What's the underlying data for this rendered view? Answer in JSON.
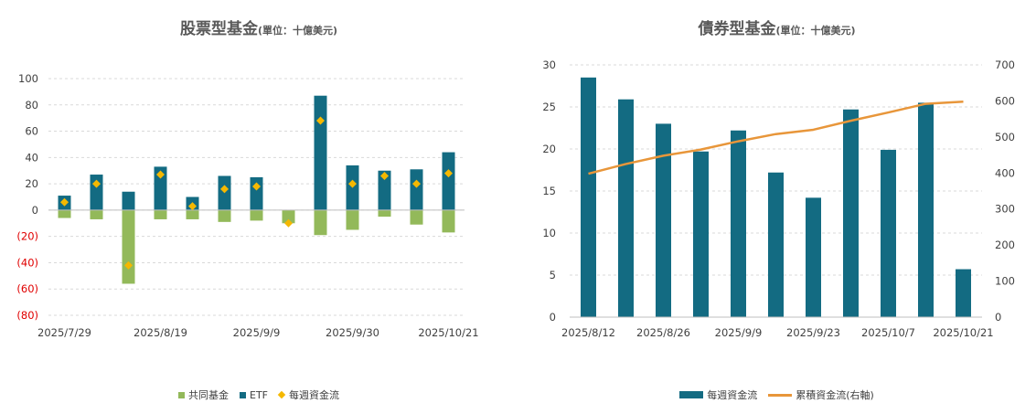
{
  "chart_data": [
    {
      "type": "bar",
      "title": "股票型基金",
      "unit": "(單位：十億美元)",
      "categories": [
        "2025/7/29",
        "2025/8/5",
        "2025/8/12",
        "2025/8/19",
        "2025/8/26",
        "2025/9/2",
        "2025/9/9",
        "2025/9/16",
        "2025/9/23",
        "2025/9/30",
        "2025/10/7",
        "2025/10/14",
        "2025/10/21"
      ],
      "x_tick_labels": [
        "2025/7/29",
        "2025/8/19",
        "2025/9/9",
        "2025/9/30",
        "2025/10/21"
      ],
      "y_tick_labels": [
        "100",
        "80",
        "60",
        "40",
        "20",
        "0",
        "(20)",
        "(40)",
        "(60)",
        "(80)"
      ],
      "ylim": [
        -80,
        100
      ],
      "series": [
        {
          "name": "共同基金",
          "kind": "bar",
          "color": "#93b95a",
          "values": [
            -6,
            -7,
            -56,
            -7,
            -7,
            -9,
            -8,
            -10,
            -19,
            -15,
            -5,
            -11,
            -17
          ]
        },
        {
          "name": "ETF",
          "kind": "bar",
          "color": "#136b82",
          "values": [
            11,
            27,
            14,
            33,
            10,
            26,
            25,
            0,
            87,
            34,
            30,
            31,
            44
          ]
        },
        {
          "name": "每週資金流",
          "kind": "marker",
          "color": "#f5b800",
          "values": [
            6,
            20,
            -42,
            27,
            3,
            16,
            18,
            -10,
            68,
            20,
            26,
            20,
            28
          ]
        }
      ],
      "legend": [
        "共同基金",
        "ETF",
        "每週資金流"
      ]
    },
    {
      "type": "bar",
      "title": "債券型基金",
      "unit": "(單位：十億美元)",
      "categories": [
        "2025/8/12",
        "2025/8/19",
        "2025/8/26",
        "2025/9/2",
        "2025/9/9",
        "2025/9/16",
        "2025/9/23",
        "2025/9/30",
        "2025/10/7",
        "2025/10/14",
        "2025/10/21"
      ],
      "x_tick_labels": [
        "2025/8/12",
        "2025/8/26",
        "2025/9/9",
        "2025/9/23",
        "2025/10/7",
        "2025/10/21"
      ],
      "y_tick_labels": [
        "30",
        "25",
        "20",
        "15",
        "10",
        "5",
        "0"
      ],
      "y2_tick_labels": [
        "700",
        "600",
        "500",
        "400",
        "300",
        "200",
        "100",
        "0"
      ],
      "ylim": [
        0,
        30
      ],
      "y2lim": [
        0,
        700
      ],
      "series": [
        {
          "name": "每週資金流",
          "kind": "bar",
          "color": "#136b82",
          "values": [
            28.5,
            25.9,
            23.0,
            19.7,
            22.2,
            17.2,
            14.2,
            24.7,
            19.9,
            25.5,
            5.7
          ]
        },
        {
          "name": "累積資金流(右軸)",
          "kind": "line",
          "axis": "right",
          "color": "#e8963a",
          "values": [
            398,
            425,
            448,
            465,
            488,
            508,
            520,
            545,
            568,
            592,
            598
          ]
        }
      ],
      "legend": [
        "每週資金流",
        "累積資金流(右軸)"
      ]
    }
  ]
}
